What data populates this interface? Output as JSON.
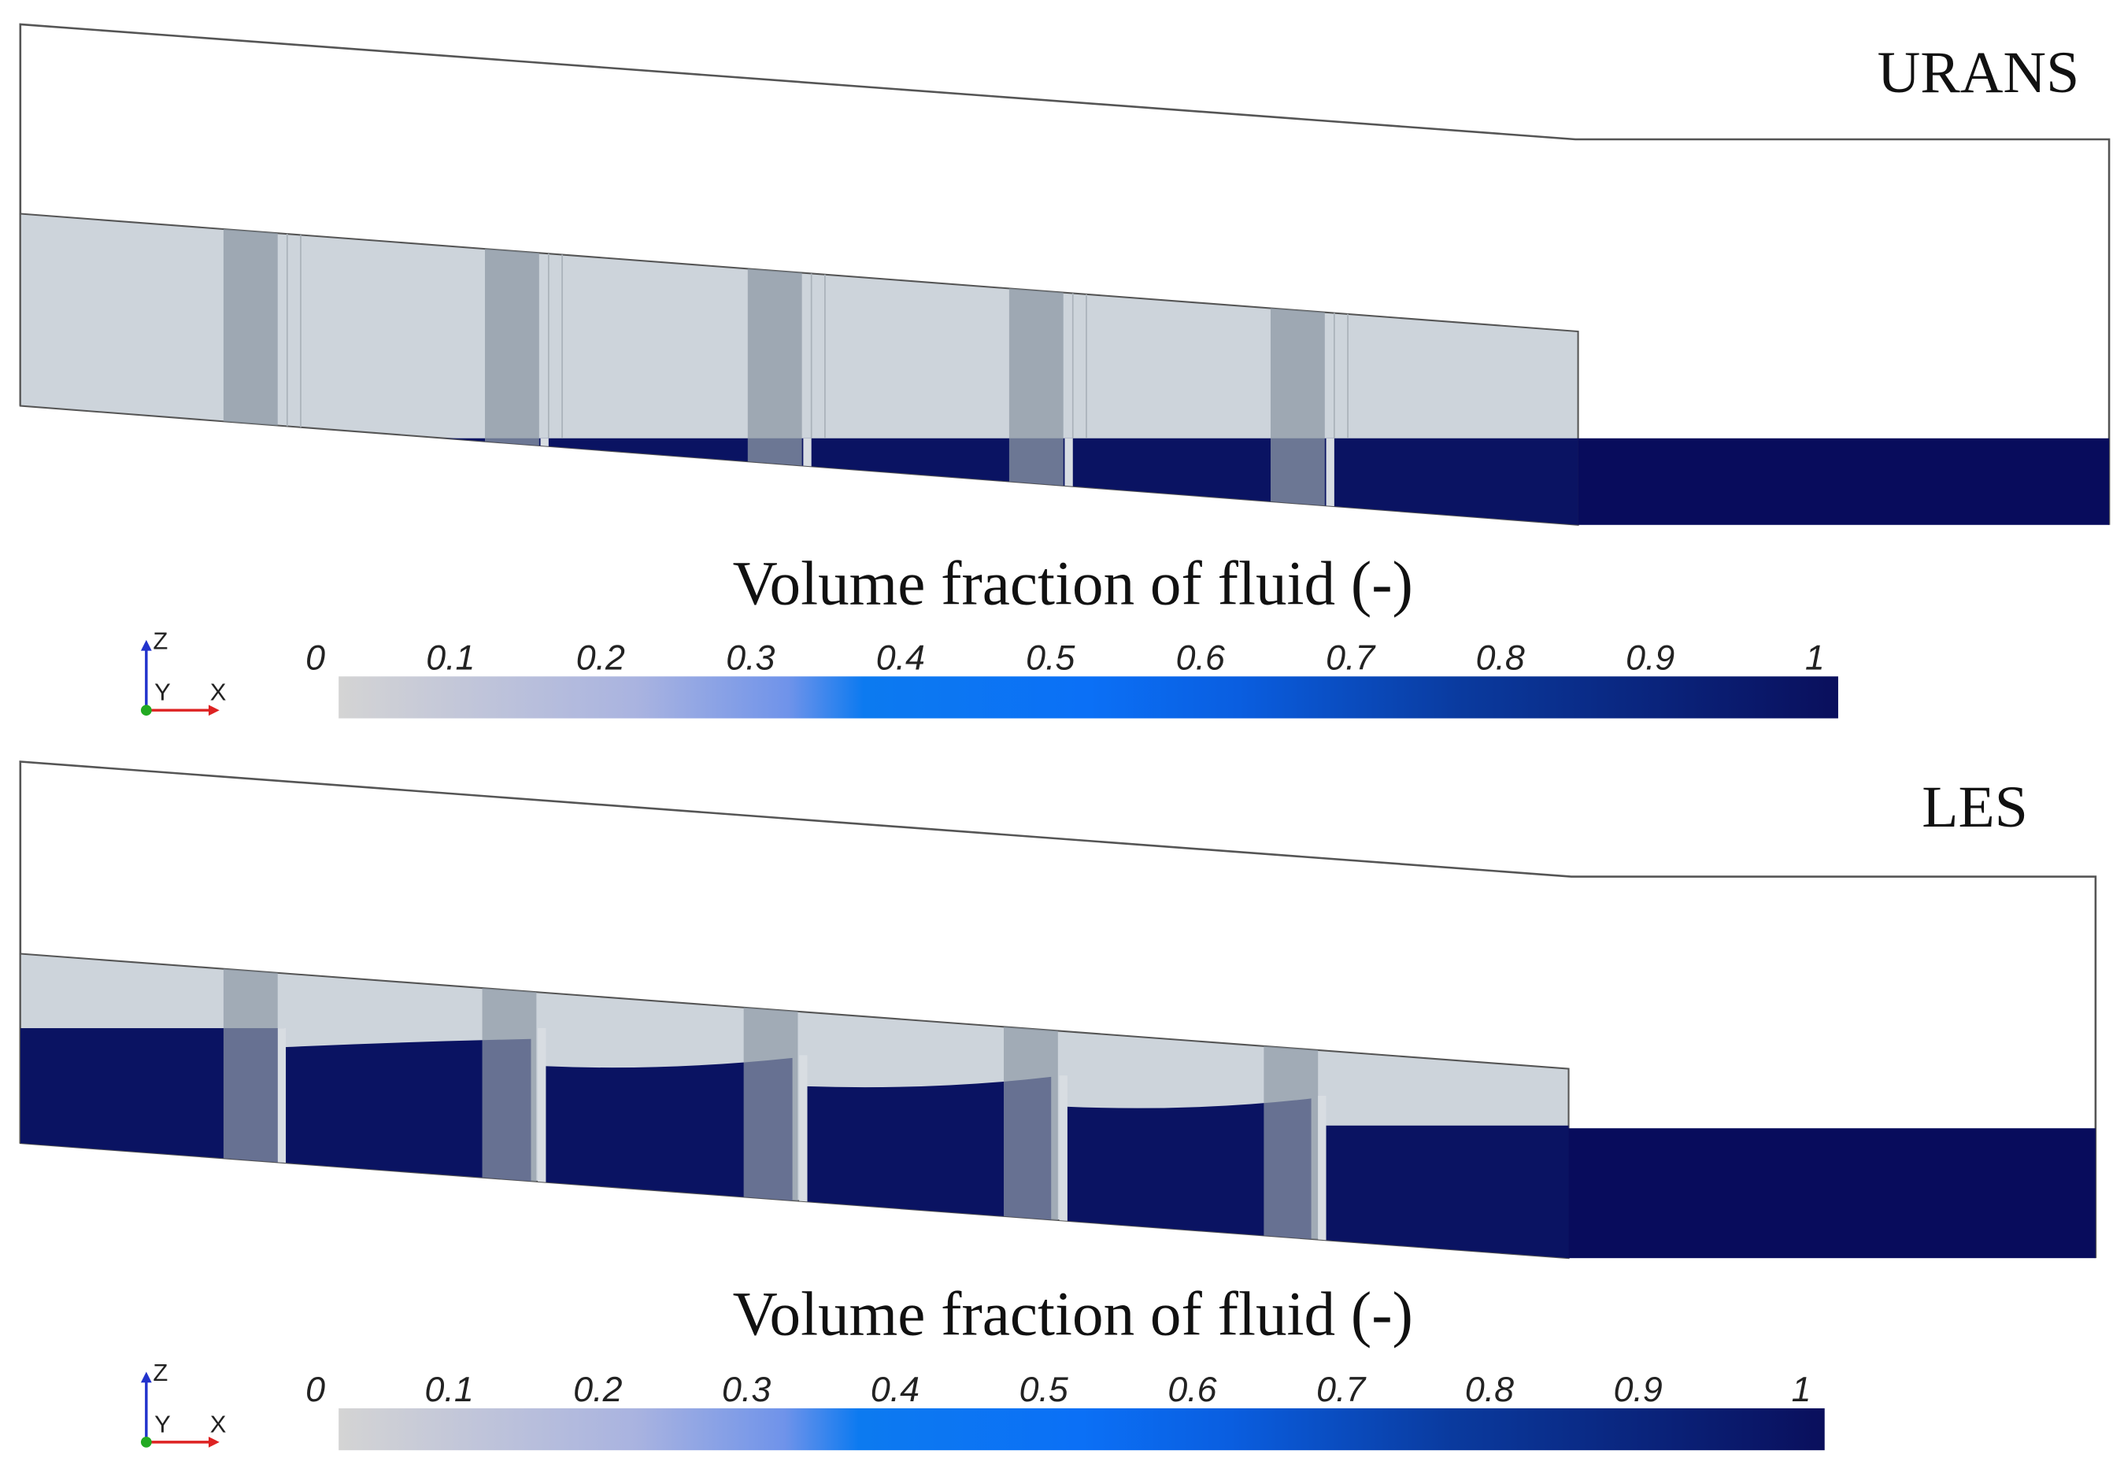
{
  "panels": [
    {
      "label": "URANS",
      "colorbar": {
        "title": "Volume fraction of fluid (-)",
        "ticks": [
          0,
          0.1,
          0.2,
          0.3,
          0.4,
          0.5,
          0.6,
          0.7,
          0.8,
          0.9,
          1
        ]
      },
      "axes": {
        "z": "Z",
        "y": "Y",
        "x": "X"
      }
    },
    {
      "label": "LES",
      "colorbar": {
        "title": "Volume fraction of fluid (-)",
        "ticks": [
          0,
          0.1,
          0.2,
          0.3,
          0.4,
          0.5,
          0.6,
          0.7,
          0.8,
          0.9,
          1
        ]
      },
      "axes": {
        "z": "Z",
        "y": "Y",
        "x": "X"
      }
    }
  ],
  "colormap": [
    {
      "value": 0,
      "color": "#d4d4d4"
    },
    {
      "value": 0.2,
      "color": "#a9b3e0"
    },
    {
      "value": 0.3,
      "color": "#6f93ea"
    },
    {
      "value": 0.35,
      "color": "#0c7af0"
    },
    {
      "value": 0.5,
      "color": "#0b70f6"
    },
    {
      "value": 0.6,
      "color": "#0a5ee0"
    },
    {
      "value": 0.75,
      "color": "#0a3a9e"
    },
    {
      "value": 1,
      "color": "#0a0f5c"
    }
  ]
}
